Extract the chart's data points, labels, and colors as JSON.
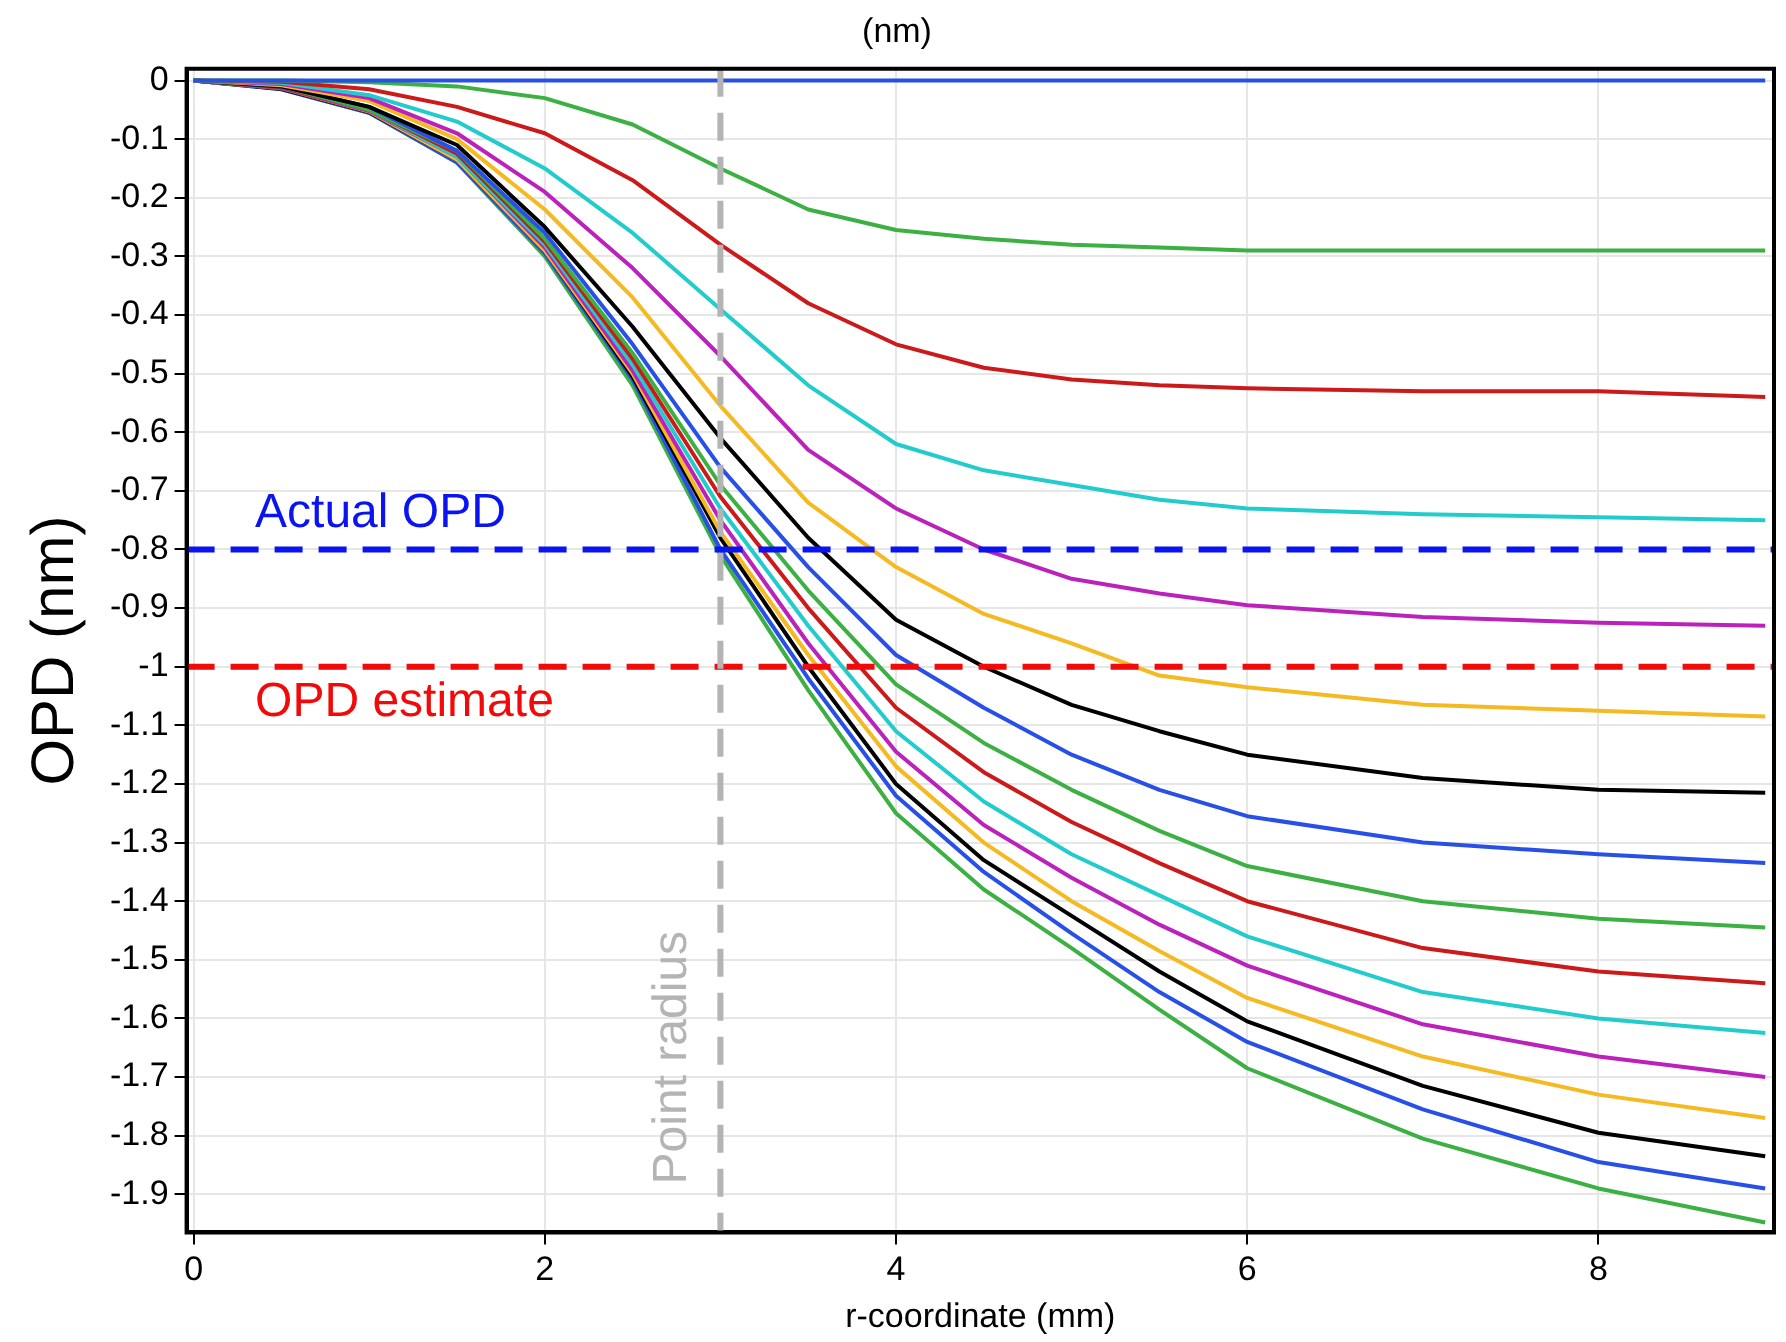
{
  "chart_data": {
    "type": "line",
    "title": "(nm)",
    "xlabel": "r-coordinate (mm)",
    "ylabel": "OPD (nm)",
    "x": [
      0,
      0.5,
      1,
      1.5,
      2,
      2.5,
      3,
      3.5,
      4,
      4.5,
      5,
      5.5,
      6,
      7,
      8,
      8.95
    ],
    "xlim": [
      -0.04,
      9
    ],
    "xticks": [
      0,
      2,
      4,
      6,
      8
    ],
    "ylim": [
      -1.965,
      0.02
    ],
    "yticks": [
      0,
      -0.1,
      -0.2,
      -0.3,
      -0.4,
      -0.5,
      -0.6,
      -0.7,
      -0.8,
      -0.9,
      -1,
      -1.1,
      -1.2,
      -1.3,
      -1.4,
      -1.5,
      -1.6,
      -1.7,
      -1.8,
      -1.9
    ],
    "grid": true,
    "legend": false,
    "marker": "none",
    "line_style": "solid",
    "series": [
      {
        "color": "#2850e6",
        "values": [
          0,
          0,
          0,
          0,
          0,
          0,
          0,
          0,
          0,
          0,
          0,
          0,
          0,
          0,
          0,
          0
        ]
      },
      {
        "color": "#3cb043",
        "values": [
          0,
          0,
          -0.003,
          -0.01,
          -0.03,
          -0.075,
          -0.15,
          -0.22,
          -0.255,
          -0.27,
          -0.28,
          -0.285,
          -0.29,
          -0.29,
          -0.29,
          -0.29
        ]
      },
      {
        "color": "#cc1a1a",
        "values": [
          0,
          -0.002,
          -0.015,
          -0.045,
          -0.09,
          -0.17,
          -0.28,
          -0.38,
          -0.45,
          -0.49,
          -0.51,
          -0.52,
          -0.525,
          -0.53,
          -0.53,
          -0.54
        ]
      },
      {
        "color": "#22cccc",
        "values": [
          0,
          -0.004,
          -0.025,
          -0.07,
          -0.15,
          -0.26,
          -0.39,
          -0.52,
          -0.62,
          -0.665,
          -0.69,
          -0.715,
          -0.73,
          -0.74,
          -0.745,
          -0.75
        ]
      },
      {
        "color": "#bb22bb",
        "values": [
          0,
          -0.006,
          -0.03,
          -0.09,
          -0.19,
          -0.32,
          -0.47,
          -0.63,
          -0.73,
          -0.8,
          -0.85,
          -0.875,
          -0.895,
          -0.915,
          -0.925,
          -0.93
        ]
      },
      {
        "color": "#f5b921",
        "values": [
          0,
          -0.008,
          -0.035,
          -0.1,
          -0.22,
          -0.37,
          -0.555,
          -0.72,
          -0.83,
          -0.91,
          -0.96,
          -1.015,
          -1.035,
          -1.065,
          -1.075,
          -1.085
        ]
      },
      {
        "color": "#000000",
        "values": [
          0,
          -0.01,
          -0.045,
          -0.11,
          -0.25,
          -0.42,
          -0.61,
          -0.78,
          -0.92,
          -1,
          -1.065,
          -1.11,
          -1.15,
          -1.19,
          -1.21,
          -1.215
        ]
      },
      {
        "color": "#2850e6",
        "values": [
          0,
          -0.01,
          -0.045,
          -0.12,
          -0.26,
          -0.45,
          -0.66,
          -0.83,
          -0.98,
          -1.07,
          -1.15,
          -1.21,
          -1.255,
          -1.3,
          -1.32,
          -1.335
        ]
      },
      {
        "color": "#3cb043",
        "values": [
          0,
          -0.01,
          -0.05,
          -0.12,
          -0.27,
          -0.465,
          -0.69,
          -0.87,
          -1.03,
          -1.13,
          -1.21,
          -1.28,
          -1.34,
          -1.4,
          -1.43,
          -1.445
        ]
      },
      {
        "color": "#cc1a1a",
        "values": [
          0,
          -0.012,
          -0.05,
          -0.125,
          -0.275,
          -0.475,
          -0.71,
          -0.9,
          -1.07,
          -1.18,
          -1.265,
          -1.335,
          -1.4,
          -1.48,
          -1.52,
          -1.54
        ]
      },
      {
        "color": "#22cccc",
        "values": [
          0,
          -0.012,
          -0.05,
          -0.13,
          -0.28,
          -0.485,
          -0.73,
          -0.93,
          -1.11,
          -1.23,
          -1.32,
          -1.39,
          -1.46,
          -1.555,
          -1.6,
          -1.625
        ]
      },
      {
        "color": "#bb22bb",
        "values": [
          0,
          -0.013,
          -0.052,
          -0.13,
          -0.285,
          -0.495,
          -0.75,
          -0.96,
          -1.145,
          -1.27,
          -1.36,
          -1.44,
          -1.51,
          -1.61,
          -1.665,
          -1.7
        ]
      },
      {
        "color": "#f5b921",
        "values": [
          0,
          -0.013,
          -0.053,
          -0.135,
          -0.29,
          -0.5,
          -0.77,
          -0.98,
          -1.17,
          -1.3,
          -1.4,
          -1.485,
          -1.565,
          -1.665,
          -1.73,
          -1.77
        ]
      },
      {
        "color": "#000000",
        "values": [
          0,
          -0.014,
          -0.054,
          -0.135,
          -0.29,
          -0.505,
          -0.78,
          -1,
          -1.2,
          -1.33,
          -1.425,
          -1.52,
          -1.605,
          -1.715,
          -1.795,
          -1.835
        ]
      },
      {
        "color": "#2850e6",
        "values": [
          0,
          -0.015,
          -0.055,
          -0.14,
          -0.295,
          -0.51,
          -0.8,
          -1.02,
          -1.22,
          -1.35,
          -1.455,
          -1.555,
          -1.64,
          -1.755,
          -1.845,
          -1.89
        ]
      },
      {
        "color": "#3cb043",
        "values": [
          0,
          -0.015,
          -0.055,
          -0.14,
          -0.3,
          -0.52,
          -0.81,
          -1.04,
          -1.25,
          -1.38,
          -1.48,
          -1.585,
          -1.685,
          -1.805,
          -1.89,
          -1.948
        ]
      }
    ],
    "ref_lines": [
      {
        "axis": "y",
        "value": -0.8,
        "label": "Actual OPD",
        "color": "#0a14f0",
        "line_style": "dashed"
      },
      {
        "axis": "y",
        "value": -1,
        "label": "OPD estimate",
        "color": "#f00a0a",
        "line_style": "dashed"
      },
      {
        "axis": "x",
        "value": 3,
        "label": "Point radius",
        "color": "#b4b4b4",
        "line_style": "dashed"
      }
    ]
  }
}
